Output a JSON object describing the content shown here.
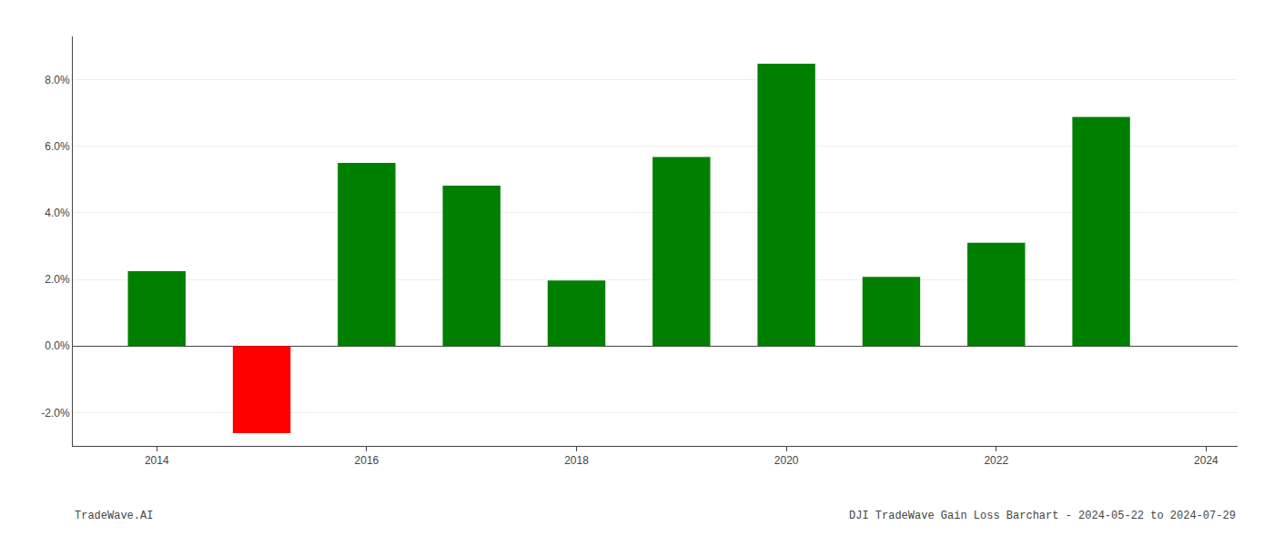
{
  "chart_data": {
    "type": "bar",
    "x": [
      2014,
      2015,
      2016,
      2017,
      2018,
      2019,
      2020,
      2021,
      2022,
      2023
    ],
    "values": [
      2.25,
      -2.62,
      5.5,
      4.82,
      1.97,
      5.68,
      8.48,
      2.08,
      3.1,
      6.88
    ],
    "colors": [
      "#008000",
      "#ff0000",
      "#008000",
      "#008000",
      "#008000",
      "#008000",
      "#008000",
      "#008000",
      "#008000",
      "#008000"
    ],
    "xlim": [
      2013.2,
      2024.3
    ],
    "xticks": [
      2014,
      2016,
      2018,
      2020,
      2022,
      2024
    ],
    "ylim": [
      -3.0,
      9.3
    ],
    "yticks": [
      {
        "value": -2.0,
        "label": "-2.0%"
      },
      {
        "value": 0.0,
        "label": "0.0%"
      },
      {
        "value": 2.0,
        "label": "2.0%"
      },
      {
        "value": 4.0,
        "label": "4.0%"
      },
      {
        "value": 6.0,
        "label": "6.0%"
      },
      {
        "value": 8.0,
        "label": "8.0%"
      }
    ],
    "grid": true,
    "annotations": [
      "TradeWave.AI",
      "DJI TradeWave Gain Loss Barchart - 2024-05-22 to 2024-07-29"
    ]
  }
}
